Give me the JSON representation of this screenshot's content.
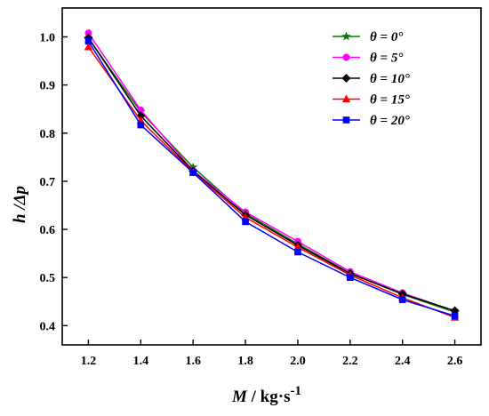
{
  "chart_data": {
    "type": "line",
    "xlabel_var": "M",
    "xlabel_unit": " / kg·s",
    "xlabel_exp": "-1",
    "ylabel": "h /Δp",
    "xlim": [
      1.1,
      2.7
    ],
    "ylim": [
      0.36,
      1.06
    ],
    "x_ticks": [
      "1.2",
      "1.4",
      "1.6",
      "1.8",
      "2.0",
      "2.2",
      "2.4",
      "2.6"
    ],
    "y_ticks": [
      "0.4",
      "0.5",
      "0.6",
      "0.7",
      "0.8",
      "0.9",
      "1.0"
    ],
    "grid": false,
    "legend_position": "top-right",
    "x": [
      1.2,
      1.4,
      1.6,
      1.8,
      2.0,
      2.2,
      2.4,
      2.6
    ],
    "series": [
      {
        "name": "θ = 0°",
        "color": "#008000",
        "marker": "star",
        "values": [
          0.997,
          0.844,
          0.729,
          0.633,
          0.57,
          0.509,
          0.465,
          0.428
        ]
      },
      {
        "name": "θ = 5°",
        "color": "#ff00ff",
        "marker": "circle",
        "values": [
          1.008,
          0.848,
          0.722,
          0.636,
          0.575,
          0.512,
          0.468,
          0.43
        ]
      },
      {
        "name": "θ = 10°",
        "color": "#000000",
        "marker": "diamond",
        "values": [
          0.998,
          0.836,
          0.721,
          0.63,
          0.567,
          0.508,
          0.466,
          0.431
        ]
      },
      {
        "name": "θ = 15°",
        "color": "#ff0000",
        "marker": "triangle",
        "values": [
          0.979,
          0.826,
          0.719,
          0.625,
          0.563,
          0.505,
          0.458,
          0.417
        ]
      },
      {
        "name": "θ = 20°",
        "color": "#0000ff",
        "marker": "square",
        "values": [
          0.991,
          0.817,
          0.718,
          0.616,
          0.553,
          0.5,
          0.454,
          0.42
        ]
      }
    ]
  }
}
